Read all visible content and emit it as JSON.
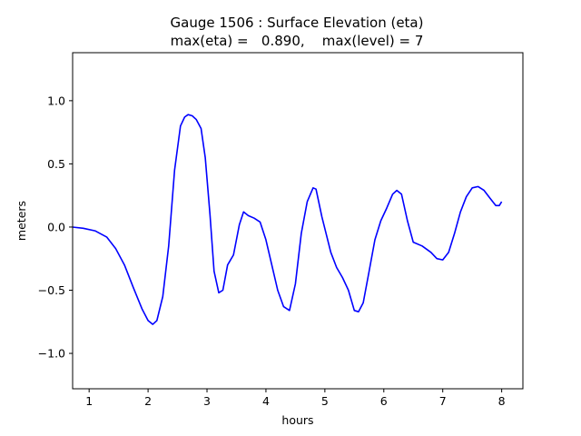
{
  "chart_data": {
    "type": "line",
    "title_line1": "Gauge 1506 : Surface Elevation (eta)",
    "title_line2": "max(eta) =   0.890,    max(level) = 7",
    "xlabel": "hours",
    "ylabel": "meters",
    "xlim": [
      0.72,
      8.36
    ],
    "ylim": [
      -1.28,
      1.38
    ],
    "x_ticks": [
      1,
      2,
      3,
      4,
      5,
      6,
      7,
      8
    ],
    "y_ticks": [
      -1.0,
      -0.5,
      0.0,
      0.5,
      1.0
    ],
    "x_tick_labels": [
      "1",
      "2",
      "3",
      "4",
      "5",
      "6",
      "7",
      "8"
    ],
    "y_tick_labels": [
      "−1.0",
      "−0.5",
      "0.0",
      "0.5",
      "1.0"
    ],
    "grid": false,
    "series": [
      {
        "color": "#0000ff",
        "x": [
          0.72,
          0.9,
          1.1,
          1.3,
          1.45,
          1.6,
          1.75,
          1.9,
          2.0,
          2.08,
          2.15,
          2.25,
          2.35,
          2.45,
          2.55,
          2.62,
          2.68,
          2.75,
          2.82,
          2.9,
          2.97,
          3.05,
          3.12,
          3.2,
          3.27,
          3.35,
          3.45,
          3.55,
          3.62,
          3.7,
          3.8,
          3.9,
          4.0,
          4.1,
          4.2,
          4.3,
          4.4,
          4.5,
          4.6,
          4.7,
          4.8,
          4.85,
          4.95,
          5.1,
          5.2,
          5.3,
          5.4,
          5.5,
          5.57,
          5.65,
          5.75,
          5.85,
          5.95,
          6.05,
          6.15,
          6.22,
          6.3,
          6.4,
          6.5,
          6.65,
          6.8,
          6.9,
          7.0,
          7.1,
          7.2,
          7.3,
          7.4,
          7.5,
          7.6,
          7.7,
          7.8,
          7.9,
          7.96,
          8.0
        ],
        "y": [
          0.0,
          -0.01,
          -0.03,
          -0.08,
          -0.17,
          -0.3,
          -0.48,
          -0.65,
          -0.74,
          -0.77,
          -0.74,
          -0.55,
          -0.15,
          0.45,
          0.8,
          0.87,
          0.89,
          0.88,
          0.85,
          0.78,
          0.55,
          0.1,
          -0.35,
          -0.52,
          -0.5,
          -0.3,
          -0.22,
          0.02,
          0.12,
          0.09,
          0.07,
          0.04,
          -0.1,
          -0.3,
          -0.5,
          -0.63,
          -0.66,
          -0.45,
          -0.05,
          0.2,
          0.31,
          0.3,
          0.08,
          -0.2,
          -0.32,
          -0.4,
          -0.5,
          -0.66,
          -0.67,
          -0.6,
          -0.35,
          -0.1,
          0.05,
          0.15,
          0.26,
          0.29,
          0.26,
          0.05,
          -0.12,
          -0.15,
          -0.2,
          -0.25,
          -0.26,
          -0.2,
          -0.05,
          0.12,
          0.24,
          0.31,
          0.32,
          0.29,
          0.23,
          0.17,
          0.17,
          0.2
        ]
      }
    ]
  }
}
